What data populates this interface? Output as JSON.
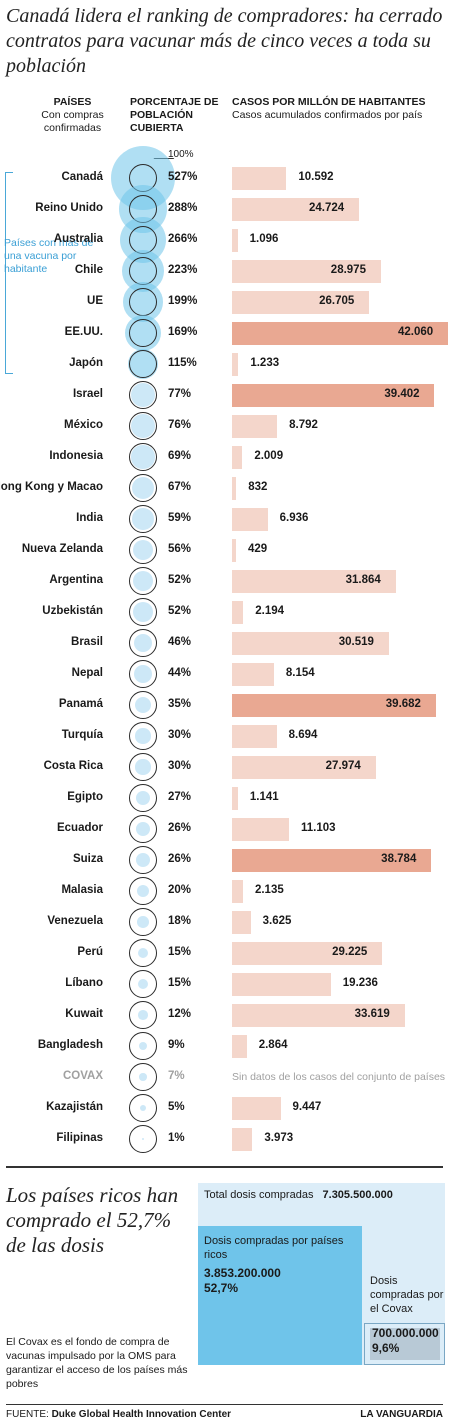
{
  "title": "Canadá lidera el ranking de compradores: ha cerrado contratos para vacunar más de cinco veces a toda su población",
  "headers": {
    "countries_title": "PAÍSES",
    "countries_sub": "Con compras confirmadas",
    "pct_title": "PORCENTAJE DE POBLACIÓN CUBIERTA",
    "cases_title": "CASOS POR MILLÓN DE HABITANTES",
    "cases_sub": "Casos acumulados confirmados por país"
  },
  "hundred_label": "100%",
  "bracket_label": "Países con más de una vacuna por habitante",
  "colors": {
    "circle_blue": "#6fc4ea",
    "circle_light": "#cde8f7",
    "bar": "#f4d6cb",
    "bar_highlight": "#e9a892",
    "bracket": "#3a9fd5"
  },
  "chart_data": {
    "type": "bar",
    "x_label": "CASOS POR MILLÓN DE HABITANTES",
    "rows": [
      {
        "country": "Canadá",
        "pct": 527,
        "pct_label": "527%",
        "cases": 10592,
        "cases_label": "10.592",
        "highlight": false
      },
      {
        "country": "Reino Unido",
        "pct": 288,
        "pct_label": "288%",
        "cases": 24724,
        "cases_label": "24.724",
        "highlight": false
      },
      {
        "country": "Australia",
        "pct": 266,
        "pct_label": "266%",
        "cases": 1096,
        "cases_label": "1.096",
        "highlight": false
      },
      {
        "country": "Chile",
        "pct": 223,
        "pct_label": "223%",
        "cases": 28975,
        "cases_label": "28.975",
        "highlight": false
      },
      {
        "country": "UE",
        "pct": 199,
        "pct_label": "199%",
        "cases": 26705,
        "cases_label": "26.705",
        "highlight": false
      },
      {
        "country": "EE.UU.",
        "pct": 169,
        "pct_label": "169%",
        "cases": 42060,
        "cases_label": "42.060",
        "highlight": true
      },
      {
        "country": "Japón",
        "pct": 115,
        "pct_label": "115%",
        "cases": 1233,
        "cases_label": "1.233",
        "highlight": false
      },
      {
        "country": "Israel",
        "pct": 77,
        "pct_label": "77%",
        "cases": 39402,
        "cases_label": "39.402",
        "highlight": true
      },
      {
        "country": "México",
        "pct": 76,
        "pct_label": "76%",
        "cases": 8792,
        "cases_label": "8.792",
        "highlight": false
      },
      {
        "country": "Indonesia",
        "pct": 69,
        "pct_label": "69%",
        "cases": 2009,
        "cases_label": "2.009",
        "highlight": false
      },
      {
        "country": "Hong Kong y Macao",
        "pct": 67,
        "pct_label": "67%",
        "cases": 832,
        "cases_label": "832",
        "highlight": false
      },
      {
        "country": "India",
        "pct": 59,
        "pct_label": "59%",
        "cases": 6936,
        "cases_label": "6.936",
        "highlight": false
      },
      {
        "country": "Nueva Zelanda",
        "pct": 56,
        "pct_label": "56%",
        "cases": 429,
        "cases_label": "429",
        "highlight": false
      },
      {
        "country": "Argentina",
        "pct": 52,
        "pct_label": "52%",
        "cases": 31864,
        "cases_label": "31.864",
        "highlight": false
      },
      {
        "country": "Uzbekistán",
        "pct": 52,
        "pct_label": "52%",
        "cases": 2194,
        "cases_label": "2.194",
        "highlight": false
      },
      {
        "country": "Brasil",
        "pct": 46,
        "pct_label": "46%",
        "cases": 30519,
        "cases_label": "30.519",
        "highlight": false
      },
      {
        "country": "Nepal",
        "pct": 44,
        "pct_label": "44%",
        "cases": 8154,
        "cases_label": "8.154",
        "highlight": false
      },
      {
        "country": "Panamá",
        "pct": 35,
        "pct_label": "35%",
        "cases": 39682,
        "cases_label": "39.682",
        "highlight": true
      },
      {
        "country": "Turquía",
        "pct": 30,
        "pct_label": "30%",
        "cases": 8694,
        "cases_label": "8.694",
        "highlight": false
      },
      {
        "country": "Costa Rica",
        "pct": 30,
        "pct_label": "30%",
        "cases": 27974,
        "cases_label": "27.974",
        "highlight": false
      },
      {
        "country": "Egipto",
        "pct": 27,
        "pct_label": "27%",
        "cases": 1141,
        "cases_label": "1.141",
        "highlight": false
      },
      {
        "country": "Ecuador",
        "pct": 26,
        "pct_label": "26%",
        "cases": 11103,
        "cases_label": "11.103",
        "highlight": false
      },
      {
        "country": "Suiza",
        "pct": 26,
        "pct_label": "26%",
        "cases": 38784,
        "cases_label": "38.784",
        "highlight": true
      },
      {
        "country": "Malasia",
        "pct": 20,
        "pct_label": "20%",
        "cases": 2135,
        "cases_label": "2.135",
        "highlight": false
      },
      {
        "country": "Venezuela",
        "pct": 18,
        "pct_label": "18%",
        "cases": 3625,
        "cases_label": "3.625",
        "highlight": false
      },
      {
        "country": "Perú",
        "pct": 15,
        "pct_label": "15%",
        "cases": 29225,
        "cases_label": "29.225",
        "highlight": false
      },
      {
        "country": "Líbano",
        "pct": 15,
        "pct_label": "15%",
        "cases": 19236,
        "cases_label": "19.236",
        "highlight": false
      },
      {
        "country": "Kuwait",
        "pct": 12,
        "pct_label": "12%",
        "cases": 33619,
        "cases_label": "33.619",
        "highlight": false
      },
      {
        "country": "Bangladesh",
        "pct": 9,
        "pct_label": "9%",
        "cases": 2864,
        "cases_label": "2.864",
        "highlight": false
      },
      {
        "country": "COVAX",
        "pct": 7,
        "pct_label": "7%",
        "cases": null,
        "cases_label": "Sin datos de los casos del conjunto de países",
        "highlight": false,
        "grey": true
      },
      {
        "country": "Kazajistán",
        "pct": 5,
        "pct_label": "5%",
        "cases": 9447,
        "cases_label": "9.447",
        "highlight": false
      },
      {
        "country": "Filipinas",
        "pct": 1,
        "pct_label": "1%",
        "cases": 3973,
        "cases_label": "3.973",
        "highlight": false
      }
    ]
  },
  "bottom": {
    "title": "Los países ricos han comprado el 52,7% de las dosis",
    "note": "El Covax es el fondo de compra de vacunas impulsado por la OMS para garantizar el acceso de los países más pobres",
    "total_label": "Total dosis compradas",
    "total_value": "7.305.500.000",
    "rich_label": "Dosis compradas por países ricos",
    "rich_value": "3.853.200.000",
    "rich_pct": "52,7%",
    "covax_label": "Dosis compradas por el Covax",
    "covax_value": "700.000.000",
    "covax_pct": "9,6%"
  },
  "footer": {
    "source_prefix": "FUENTE:",
    "source": "Duke Global Health Innovation Center",
    "brand": "LA VANGUARDIA"
  }
}
